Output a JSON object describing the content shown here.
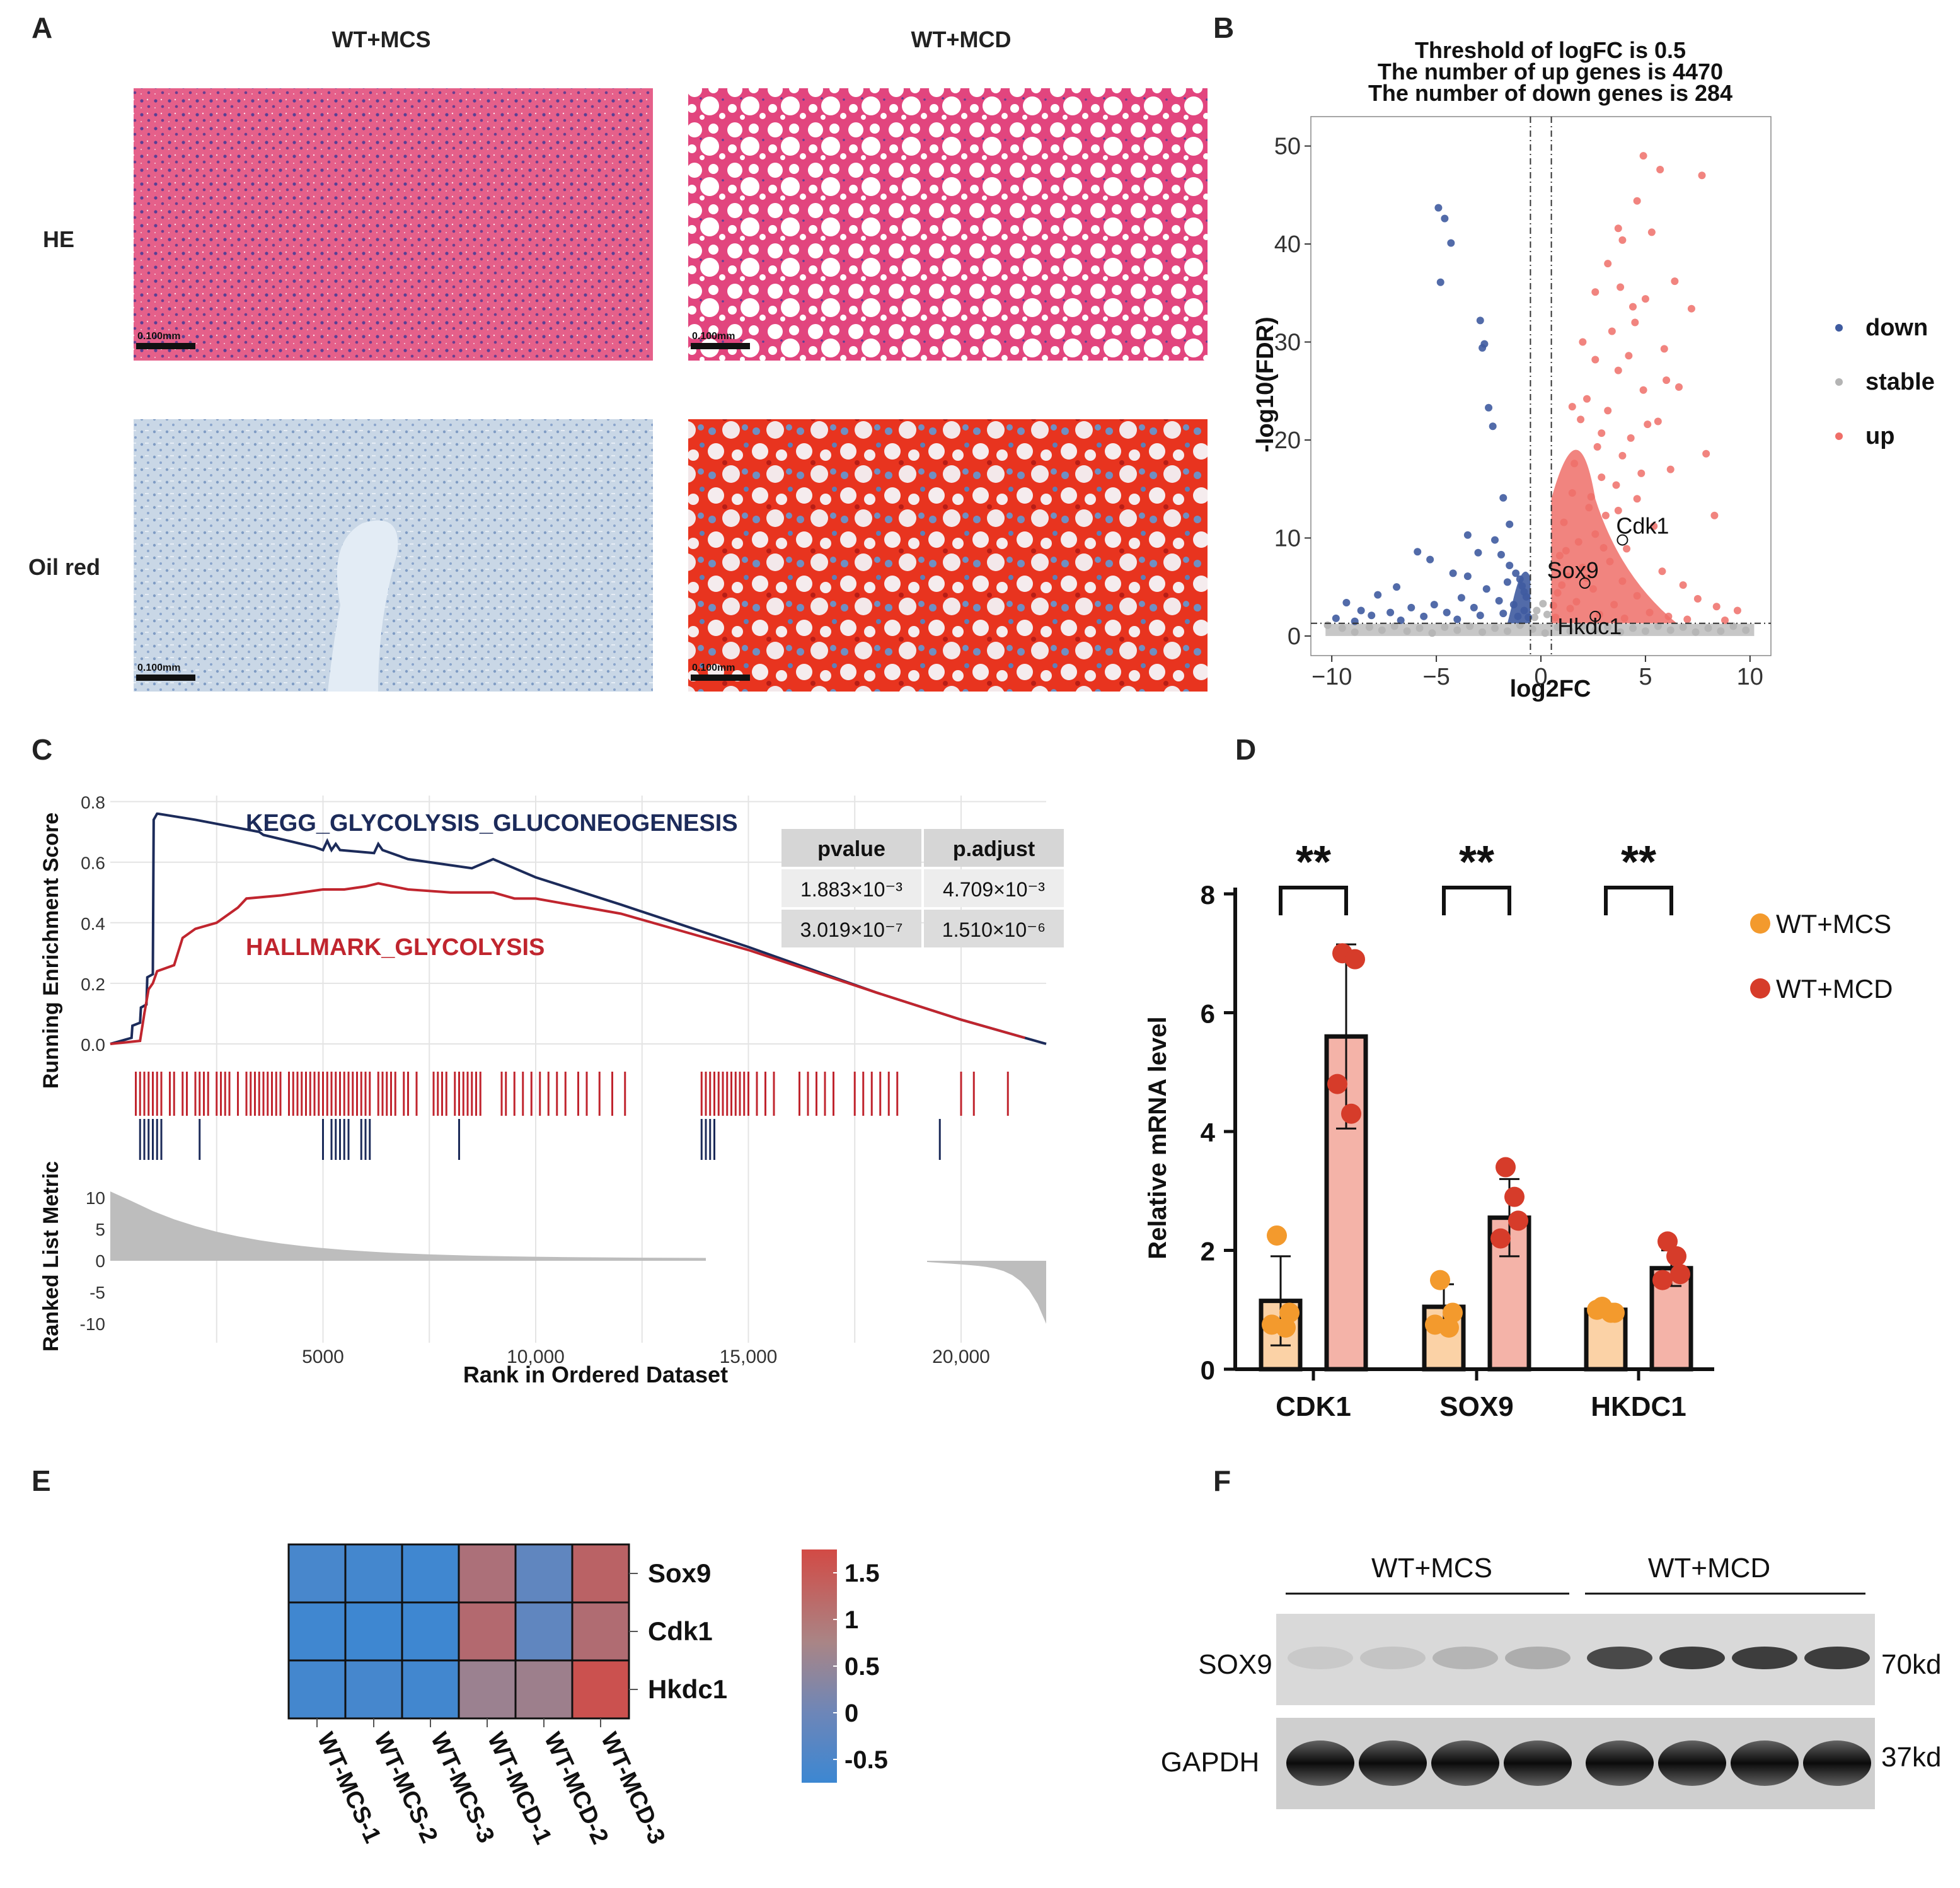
{
  "panel_labels": [
    "A",
    "B",
    "C",
    "D",
    "E",
    "F"
  ],
  "colors": {
    "down": "#3f5ba0",
    "stable": "#b4b4b4",
    "up": "#ef6e68",
    "kegg": "#1c2b5a",
    "hallmark": "#c0252e",
    "mcs": "#f39a2d",
    "mcd": "#d63c2a",
    "bar_mcs": "#fbd2a6",
    "bar_mcd": "#f4b3a8"
  },
  "panelA": {
    "col_labels": [
      "WT+MCS",
      "WT+MCD"
    ],
    "row_labels": [
      "HE",
      "Oil red"
    ],
    "scale_bar": "0.100mm"
  },
  "chart_data": [
    {
      "id": "B",
      "type": "scatter",
      "title": [
        "Threshold of logFC is 0.5",
        "The number of up genes is 4470",
        "The number of down genes is 284"
      ],
      "xlabel": "log2FC",
      "ylabel": "-log10(FDR)",
      "xlim": [
        -11,
        11
      ],
      "ylim": [
        -2,
        53
      ],
      "xticks": [
        -10,
        -5,
        0,
        5,
        10
      ],
      "xtick_labels": [
        "−10",
        "−5",
        "0",
        "5",
        "10"
      ],
      "yticks": [
        0,
        10,
        20,
        30,
        40,
        50
      ],
      "threshold_x": [
        -0.5,
        0.5
      ],
      "threshold_y": 1.3,
      "legend": [
        "down",
        "stable",
        "up"
      ],
      "labels": [
        {
          "gene": "Cdk1",
          "x": 3.9,
          "y": 9.8
        },
        {
          "gene": "Sox9",
          "x": 2.1,
          "y": 5.4
        },
        {
          "gene": "Hkdc1",
          "x": 2.6,
          "y": 2.0
        }
      ],
      "down_points": [
        [
          -4.9,
          43.7
        ],
        [
          -4.6,
          42.6
        ],
        [
          -4.3,
          40.1
        ],
        [
          -4.8,
          36.1
        ],
        [
          -2.9,
          32.2
        ],
        [
          -2.7,
          29.8
        ],
        [
          -2.8,
          29.4
        ],
        [
          -2.5,
          23.3
        ],
        [
          -2.3,
          21.4
        ],
        [
          -1.8,
          14.1
        ],
        [
          -1.5,
          11.4
        ],
        [
          -3.5,
          10.3
        ],
        [
          -3.0,
          8.5
        ],
        [
          -5.9,
          8.6
        ],
        [
          -5.3,
          7.8
        ],
        [
          -4.2,
          6.4
        ],
        [
          -3.5,
          6.1
        ],
        [
          -6.9,
          5.0
        ],
        [
          -7.8,
          4.2
        ],
        [
          -9.3,
          3.4
        ],
        [
          -8.6,
          2.6
        ],
        [
          -2.2,
          9.8
        ],
        [
          -1.9,
          8.3
        ],
        [
          -1.5,
          7.2
        ],
        [
          -1.2,
          6.4
        ],
        [
          -1.0,
          5.8
        ],
        [
          -0.9,
          5.1
        ],
        [
          -0.8,
          4.5
        ],
        [
          -0.7,
          4.0
        ],
        [
          -1.6,
          5.5
        ],
        [
          -2.6,
          4.8
        ],
        [
          -3.8,
          3.9
        ],
        [
          -5.1,
          3.2
        ],
        [
          -6.2,
          2.9
        ],
        [
          -7.2,
          2.4
        ],
        [
          -8.1,
          2.1
        ],
        [
          -9.8,
          1.8
        ],
        [
          -2.0,
          3.6
        ],
        [
          -3.2,
          2.9
        ],
        [
          -4.5,
          2.4
        ],
        [
          -5.6,
          2.0
        ],
        [
          -1.3,
          3.2
        ],
        [
          -0.8,
          2.6
        ],
        [
          -1.8,
          2.3
        ],
        [
          -2.9,
          2.1
        ],
        [
          -0.6,
          1.9
        ],
        [
          -1.1,
          2.0
        ],
        [
          -4.0,
          1.7
        ],
        [
          -6.7,
          1.6
        ],
        [
          -8.9,
          1.5
        ]
      ],
      "up_points": [
        [
          4.9,
          49.0
        ],
        [
          5.7,
          47.6
        ],
        [
          7.7,
          47.0
        ],
        [
          4.6,
          44.4
        ],
        [
          3.7,
          41.6
        ],
        [
          5.3,
          41.2
        ],
        [
          3.9,
          40.4
        ],
        [
          3.2,
          38.0
        ],
        [
          6.4,
          36.2
        ],
        [
          3.8,
          35.6
        ],
        [
          2.6,
          35.1
        ],
        [
          4.4,
          33.6
        ],
        [
          7.2,
          33.4
        ],
        [
          4.5,
          32.0
        ],
        [
          3.4,
          31.1
        ],
        [
          2.0,
          30.0
        ],
        [
          5.9,
          29.3
        ],
        [
          2.6,
          28.2
        ],
        [
          3.7,
          27.1
        ],
        [
          4.9,
          25.1
        ],
        [
          2.2,
          24.2
        ],
        [
          3.2,
          23.0
        ],
        [
          1.9,
          22.1
        ],
        [
          5.1,
          21.6
        ],
        [
          4.3,
          20.2
        ],
        [
          2.7,
          19.3
        ],
        [
          3.9,
          18.4
        ],
        [
          1.6,
          17.6
        ],
        [
          6.2,
          17.0
        ],
        [
          2.9,
          16.2
        ],
        [
          3.6,
          15.4
        ],
        [
          1.5,
          14.6
        ],
        [
          4.6,
          14.0
        ],
        [
          2.3,
          13.1
        ],
        [
          3.1,
          12.3
        ],
        [
          1.1,
          11.6
        ],
        [
          5.4,
          11.2
        ],
        [
          2.6,
          10.4
        ],
        [
          1.8,
          9.6
        ],
        [
          4.1,
          8.9
        ],
        [
          0.9,
          8.2
        ],
        [
          3.3,
          7.6
        ],
        [
          2.0,
          7.0
        ],
        [
          5.8,
          6.6
        ],
        [
          1.3,
          6.1
        ],
        [
          3.9,
          5.6
        ],
        [
          6.8,
          5.2
        ],
        [
          2.5,
          4.8
        ],
        [
          0.8,
          4.4
        ],
        [
          4.6,
          4.1
        ],
        [
          7.5,
          3.8
        ],
        [
          1.7,
          3.5
        ],
        [
          3.5,
          3.2
        ],
        [
          8.4,
          3.0
        ],
        [
          9.4,
          2.6
        ],
        [
          5.2,
          2.4
        ],
        [
          2.8,
          2.2
        ],
        [
          6.1,
          2.0
        ],
        [
          0.7,
          1.9
        ],
        [
          4.0,
          1.8
        ],
        [
          7.0,
          1.7
        ],
        [
          8.8,
          1.6
        ],
        [
          1.4,
          2.8
        ],
        [
          2.2,
          5.9
        ],
        [
          3.0,
          9.0
        ],
        [
          4.8,
          16.6
        ],
        [
          5.6,
          21.9
        ],
        [
          6.6,
          25.4
        ],
        [
          7.9,
          18.6
        ],
        [
          8.3,
          12.3
        ],
        [
          2.4,
          14.2
        ],
        [
          1.2,
          8.7
        ],
        [
          0.6,
          3.1
        ],
        [
          1.0,
          5.2
        ],
        [
          3.7,
          12.8
        ],
        [
          2.9,
          20.7
        ],
        [
          1.5,
          23.4
        ],
        [
          4.2,
          28.6
        ],
        [
          5.0,
          34.4
        ],
        [
          6.0,
          26.1
        ]
      ],
      "stable_points": [
        [
          -10.2,
          1.1
        ],
        [
          -9.5,
          0.8
        ],
        [
          -8.9,
          0.4
        ],
        [
          -8.2,
          0.9
        ],
        [
          -7.6,
          0.6
        ],
        [
          -7.0,
          1.0
        ],
        [
          -6.4,
          0.5
        ],
        [
          -5.8,
          0.8
        ],
        [
          -5.2,
          0.3
        ],
        [
          -4.6,
          0.9
        ],
        [
          -4.0,
          0.6
        ],
        [
          -3.4,
          1.0
        ],
        [
          -2.8,
          0.4
        ],
        [
          -2.2,
          0.8
        ],
        [
          -1.6,
          0.5
        ],
        [
          -1.0,
          1.1
        ],
        [
          -0.4,
          0.7
        ],
        [
          0.2,
          0.3
        ],
        [
          0.8,
          0.9
        ],
        [
          1.4,
          0.5
        ],
        [
          2.0,
          1.0
        ],
        [
          2.6,
          0.6
        ],
        [
          3.2,
          0.9
        ],
        [
          3.8,
          0.4
        ],
        [
          4.4,
          0.8
        ],
        [
          5.0,
          0.5
        ],
        [
          5.6,
          1.0
        ],
        [
          6.2,
          0.6
        ],
        [
          6.8,
          0.9
        ],
        [
          7.4,
          0.4
        ],
        [
          8.0,
          0.8
        ],
        [
          8.6,
          0.5
        ],
        [
          9.2,
          1.0
        ],
        [
          9.8,
          0.6
        ],
        [
          -0.2,
          2.6
        ],
        [
          0.1,
          3.3
        ],
        [
          -0.3,
          1.9
        ],
        [
          0.3,
          2.2
        ]
      ]
    },
    {
      "id": "C",
      "type": "line",
      "ylabel_top": "Running Enrichment Score",
      "ylabel_bottom": "Ranked List Metric",
      "xlabel": "Rank in Ordered Dataset",
      "xlim": [
        0,
        22000
      ],
      "xticks": [
        5000,
        10000,
        15000,
        20000
      ],
      "xtick_labels": [
        "5000",
        "10,000",
        "15,000",
        "20,000"
      ],
      "es_ylim": [
        -0.05,
        0.82
      ],
      "es_yticks": [
        0.0,
        0.2,
        0.4,
        0.6,
        0.8
      ],
      "es_ytick_labels": [
        "0.0",
        "0.2",
        "0.4",
        "0.6",
        "0.8"
      ],
      "metric_ylim": [
        -13,
        15
      ],
      "metric_yticks": [
        10,
        5,
        0,
        -5,
        -10
      ],
      "series": [
        {
          "name": "KEGG_GLYCOLYSIS_GLUCONEOGENESIS",
          "x": [
            0,
            500,
            520,
            700,
            720,
            850,
            870,
            1000,
            1020,
            1100,
            1120,
            2000,
            3500,
            3600,
            4800,
            5000,
            5100,
            5200,
            5300,
            5400,
            6200,
            6300,
            6400,
            7000,
            8500,
            9000,
            10000,
            12000,
            15000,
            18000,
            20000,
            22000
          ],
          "y": [
            0,
            0.02,
            0.06,
            0.07,
            0.12,
            0.13,
            0.22,
            0.23,
            0.74,
            0.76,
            0.76,
            0.74,
            0.7,
            0.69,
            0.65,
            0.64,
            0.67,
            0.64,
            0.66,
            0.64,
            0.63,
            0.66,
            0.64,
            0.61,
            0.58,
            0.61,
            0.55,
            0.46,
            0.32,
            0.17,
            0.08,
            0.0
          ]
        },
        {
          "name": "HALLMARK_GLYCOLYSIS",
          "x": [
            0,
            700,
            800,
            900,
            1000,
            1100,
            1500,
            1700,
            2000,
            2500,
            3000,
            3200,
            4000,
            4500,
            5000,
            5500,
            6000,
            6300,
            7000,
            8000,
            9000,
            9500,
            10000,
            12000,
            15000,
            18000,
            20000,
            21500
          ],
          "y": [
            0,
            0.01,
            0.1,
            0.18,
            0.2,
            0.24,
            0.26,
            0.35,
            0.38,
            0.4,
            0.45,
            0.48,
            0.49,
            0.5,
            0.51,
            0.51,
            0.52,
            0.53,
            0.51,
            0.5,
            0.5,
            0.48,
            0.48,
            0.43,
            0.31,
            0.17,
            0.08,
            0.02
          ]
        }
      ],
      "table": {
        "headers": [
          "pvalue",
          "p.adjust"
        ],
        "rows": [
          [
            "1.883×10⁻³",
            "4.709×10⁻³"
          ],
          [
            "3.019×10⁻⁷",
            "1.510×10⁻⁶"
          ]
        ]
      },
      "hallmark_hits": [
        600,
        700,
        800,
        900,
        1000,
        1100,
        1200,
        1400,
        1500,
        1700,
        1800,
        2000,
        2100,
        2200,
        2300,
        2500,
        2600,
        2700,
        2800,
        3000,
        3200,
        3300,
        3400,
        3500,
        3600,
        3700,
        3800,
        3900,
        4000,
        4200,
        4300,
        4400,
        4500,
        4600,
        4700,
        4800,
        4900,
        5000,
        5100,
        5200,
        5300,
        5400,
        5500,
        5600,
        5700,
        5800,
        5900,
        6000,
        6100,
        6300,
        6400,
        6500,
        6600,
        6700,
        6900,
        7000,
        7200,
        7600,
        7700,
        7800,
        7900,
        8100,
        8200,
        8300,
        8400,
        8500,
        8600,
        8700,
        9200,
        9300,
        9500,
        9700,
        9900,
        10100,
        10300,
        10500,
        10700,
        11000,
        11200,
        11500,
        11800,
        12100,
        13900,
        14000,
        14100,
        14200,
        14300,
        14400,
        14500,
        14600,
        14700,
        14800,
        14900,
        15000,
        15200,
        15400,
        15600,
        16200,
        16400,
        16600,
        16800,
        17000,
        17500,
        17700,
        17900,
        18100,
        18300,
        18500,
        20000,
        20300,
        21100
      ],
      "kegg_hits": [
        700,
        800,
        900,
        1000,
        1100,
        1200,
        2100,
        5000,
        5200,
        5300,
        5400,
        5500,
        5600,
        5900,
        6000,
        6100,
        8200,
        13900,
        14000,
        14100,
        14200,
        19500
      ]
    },
    {
      "id": "D",
      "type": "bar",
      "ylabel": "Relative mRNA level",
      "ylim": [
        0,
        8
      ],
      "yticks": [
        0,
        2,
        4,
        6,
        8
      ],
      "categories": [
        "CDK1",
        "SOX9",
        "HKDC1"
      ],
      "significance": [
        "**",
        "**",
        "**"
      ],
      "series": [
        {
          "name": "WT+MCS",
          "values": [
            1.15,
            1.05,
            1.0
          ],
          "errors": [
            0.75,
            0.38,
            0.1
          ],
          "points": [
            [
              2.25,
              0.95,
              0.75,
              0.7
            ],
            [
              1.5,
              0.95,
              0.75,
              0.7
            ],
            [
              1.05,
              0.95,
              1.0,
              0.95
            ]
          ]
        },
        {
          "name": "WT+MCD",
          "values": [
            5.6,
            2.55,
            1.7
          ],
          "errors": [
            1.55,
            0.65,
            0.3
          ],
          "points": [
            [
              7.0,
              6.9,
              4.8,
              4.3
            ],
            [
              3.4,
              2.5,
              2.2,
              2.9
            ],
            [
              2.15,
              1.6,
              1.5,
              1.9
            ]
          ]
        }
      ]
    },
    {
      "id": "E",
      "type": "heatmap",
      "rows": [
        "Sox9",
        "Cdk1",
        "Hkdc1"
      ],
      "columns": [
        "WT-MCS-1",
        "WT-MCS-2",
        "WT-MCS-3",
        "WT-MCD-1",
        "WT-MCD-2",
        "WT-MCD-3"
      ],
      "values": [
        [
          -0.45,
          -0.55,
          -0.65,
          0.95,
          0.15,
          1.25
        ],
        [
          -0.65,
          -0.7,
          -0.7,
          1.1,
          0.15,
          1.05
        ],
        [
          -0.55,
          -0.5,
          -0.6,
          0.6,
          0.65,
          1.6
        ]
      ],
      "legend_ticks": [
        1.5,
        1,
        0.5,
        0,
        -0.5
      ],
      "legend_tick_labels": [
        "1.5",
        "1",
        "0.5",
        "0",
        "-0.5"
      ],
      "legend_range": [
        -0.75,
        1.75
      ]
    }
  ],
  "panelF": {
    "group_labels": [
      "WT+MCS",
      "WT+MCD"
    ],
    "row_labels": [
      "SOX9",
      "GAPDH"
    ],
    "sizes": [
      "70kd",
      "37kd"
    ],
    "sox9_intensity": [
      0.08,
      0.1,
      0.18,
      0.22,
      0.72,
      0.78,
      0.78,
      0.78
    ],
    "gapdh_intensity": [
      0.95,
      0.95,
      0.95,
      0.95,
      0.95,
      0.95,
      0.95,
      0.95
    ]
  }
}
